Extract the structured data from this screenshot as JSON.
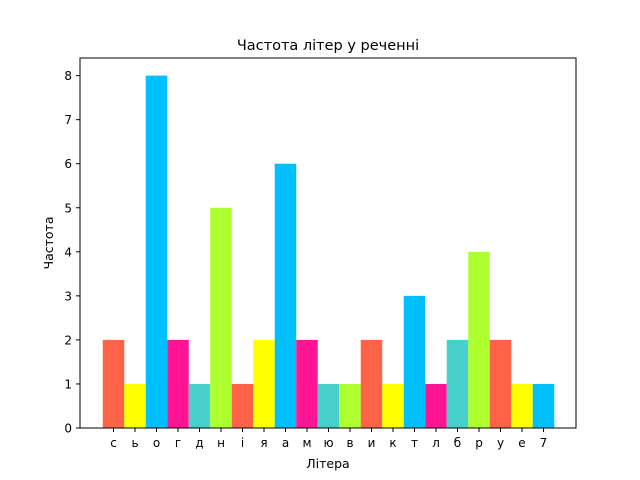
{
  "chart_data": {
    "type": "bar",
    "title": "Частота літер у реченні",
    "xlabel": "Літера",
    "ylabel": "Частота",
    "categories": [
      "с",
      "ь",
      "о",
      "г",
      "д",
      "н",
      "і",
      "я",
      "а",
      "м",
      "ю",
      "в",
      "и",
      "к",
      "т",
      "л",
      "б",
      "р",
      "у",
      "е",
      "7"
    ],
    "values": [
      2,
      1,
      8,
      2,
      1,
      5,
      1,
      2,
      6,
      2,
      1,
      1,
      2,
      1,
      3,
      1,
      2,
      4,
      2,
      1,
      1
    ],
    "colors": [
      "#ff6347",
      "#ffff00",
      "#00bfff",
      "#ff1493",
      "#48d1cc",
      "#adff2f",
      "#ff6347",
      "#ffff00",
      "#00bfff",
      "#ff1493",
      "#48d1cc",
      "#adff2f",
      "#ff6347",
      "#ffff00",
      "#00bfff",
      "#ff1493",
      "#48d1cc",
      "#adff2f",
      "#ff6347",
      "#ffff00",
      "#00bfff"
    ],
    "ylim": [
      0,
      8.4
    ],
    "yticks": [
      "0",
      "1",
      "2",
      "3",
      "4",
      "5",
      "6",
      "7",
      "8"
    ],
    "grid": false,
    "legend": false
  }
}
